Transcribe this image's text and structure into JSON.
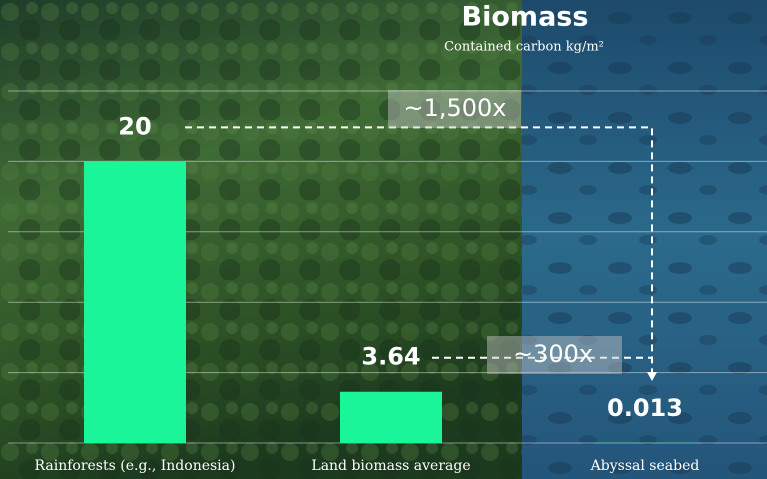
{
  "chart_data": {
    "type": "bar",
    "title": "Biomass",
    "subtitle": "Contained carbon kg/m²",
    "categories": [
      "Rainforests (e.g., Indonesia)",
      "Land biomass average",
      "Abyssal seabed"
    ],
    "values": [
      20,
      3.64,
      0.013
    ],
    "color": "#19f598",
    "ylim": [
      0,
      25
    ],
    "yticks": [
      0,
      5,
      10,
      15,
      20,
      25
    ],
    "grid": true,
    "annotations": [
      "~1,500x",
      "~300x"
    ]
  }
}
